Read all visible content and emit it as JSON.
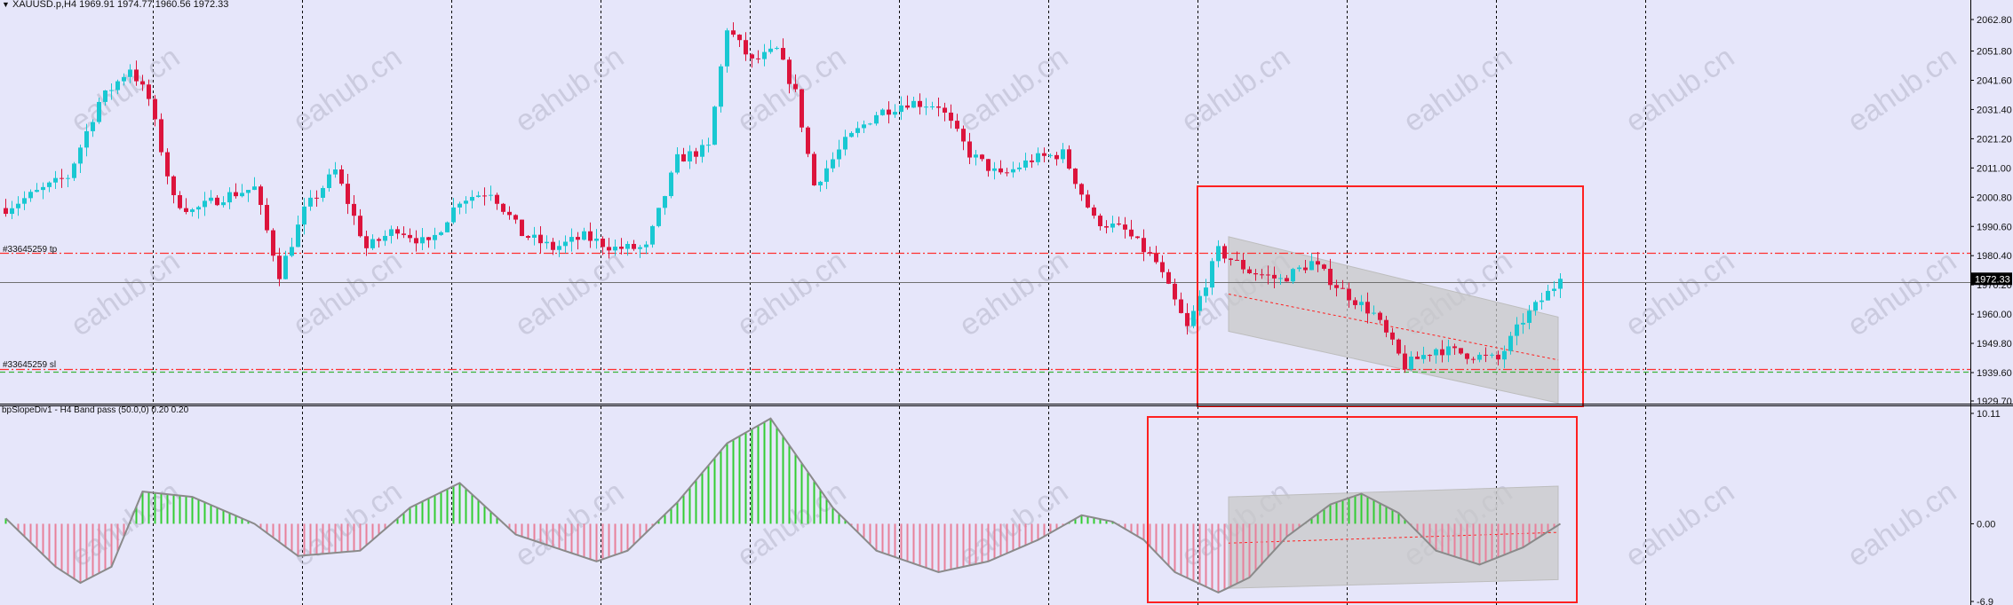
{
  "title": "XAUUSD.p,H4  1969.91 1974.77 1960.56 1972.33",
  "indicator_title": "bpSlopeDiv1 - H4 Band pass (50.0,0) 0.20 0.20",
  "watermark": "eahub.cn",
  "order_labels": {
    "tp": "#33645259 tp",
    "sl": "#33645259 sl"
  },
  "colors": {
    "background": "#e6e6fa",
    "bull": "#19c8d2",
    "bear": "#dc143c",
    "pos_hist": "#32cd32",
    "neg_hist": "#e8809a",
    "box": "#ff2020",
    "grid": "#000000",
    "channel": "#c8c8c8"
  },
  "chart_data": [
    {
      "type": "candlestick",
      "title": "XAUUSD.p,H4  1969.91 1974.77 1960.56 1972.33",
      "symbol": "XAUUSD.p",
      "timeframe": "H4",
      "last_price": "1972.33",
      "y_ticks": [
        "2062.80",
        "2051.80",
        "2041.60",
        "2031.40",
        "2021.20",
        "2011.00",
        "2000.80",
        "1990.60",
        "1980.40",
        "1970.20",
        "1960.00",
        "1949.80",
        "1939.60",
        "1929.70"
      ],
      "ylim": [
        1929.7,
        2062.8
      ],
      "grid": "vertical dashed",
      "horizontal_lines": [
        {
          "label": "#33645259 tp",
          "price": 1981.5,
          "style": "dash-dot",
          "color": "#ff3030"
        },
        {
          "label": "",
          "price": 1971.2,
          "style": "solid",
          "color": "#707070"
        },
        {
          "label": "#33645259 sl",
          "price": 1940.9,
          "style": "dash-dot",
          "color": "#ff3030"
        },
        {
          "label": "",
          "price": 1939.9,
          "style": "dash",
          "color": "#3cb43c"
        }
      ],
      "approximate_close_path": [
        {
          "bar": 0,
          "close": 1997
        },
        {
          "bar": 10,
          "close": 2008
        },
        {
          "bar": 15,
          "close": 2034
        },
        {
          "bar": 20,
          "close": 2046
        },
        {
          "bar": 23,
          "close": 2035
        },
        {
          "bar": 27,
          "close": 2000
        },
        {
          "bar": 30,
          "close": 1996
        },
        {
          "bar": 35,
          "close": 2001
        },
        {
          "bar": 40,
          "close": 2004
        },
        {
          "bar": 44,
          "close": 1974
        },
        {
          "bar": 48,
          "close": 1996
        },
        {
          "bar": 53,
          "close": 2010
        },
        {
          "bar": 58,
          "close": 1983
        },
        {
          "bar": 63,
          "close": 1990
        },
        {
          "bar": 68,
          "close": 1984
        },
        {
          "bar": 73,
          "close": 2000
        },
        {
          "bar": 78,
          "close": 2003
        },
        {
          "bar": 83,
          "close": 1988
        },
        {
          "bar": 88,
          "close": 1983
        },
        {
          "bar": 93,
          "close": 1987
        },
        {
          "bar": 98,
          "close": 1983
        },
        {
          "bar": 103,
          "close": 1983
        },
        {
          "bar": 108,
          "close": 2014
        },
        {
          "bar": 113,
          "close": 2018
        },
        {
          "bar": 116,
          "close": 2060
        },
        {
          "bar": 120,
          "close": 2048
        },
        {
          "bar": 124,
          "close": 2052
        },
        {
          "bar": 127,
          "close": 2037
        },
        {
          "bar": 130,
          "close": 2005
        },
        {
          "bar": 135,
          "close": 2020
        },
        {
          "bar": 140,
          "close": 2030
        },
        {
          "bar": 145,
          "close": 2034
        },
        {
          "bar": 150,
          "close": 2033
        },
        {
          "bar": 155,
          "close": 2016
        },
        {
          "bar": 160,
          "close": 2008
        },
        {
          "bar": 165,
          "close": 2014
        },
        {
          "bar": 170,
          "close": 2016
        },
        {
          "bar": 175,
          "close": 1993
        },
        {
          "bar": 180,
          "close": 1989
        },
        {
          "bar": 185,
          "close": 1978
        },
        {
          "bar": 190,
          "close": 1955
        },
        {
          "bar": 195,
          "close": 1982
        },
        {
          "bar": 200,
          "close": 1975
        },
        {
          "bar": 205,
          "close": 1972
        },
        {
          "bar": 210,
          "close": 1978
        },
        {
          "bar": 215,
          "close": 1968
        },
        {
          "bar": 220,
          "close": 1960
        },
        {
          "bar": 225,
          "close": 1942
        },
        {
          "bar": 230,
          "close": 1948
        },
        {
          "bar": 235,
          "close": 1946
        },
        {
          "bar": 240,
          "close": 1944
        },
        {
          "bar": 244,
          "close": 1958
        },
        {
          "bar": 250,
          "close": 1972
        }
      ],
      "channel": {
        "start_bar": 197,
        "end_bar": 250,
        "upper": [
          1987,
          1959
        ],
        "mid": [
          1967,
          1944
        ],
        "lower": [
          1954,
          1929
        ]
      },
      "highlight_bars": [
        192,
        254
      ]
    },
    {
      "type": "bar",
      "title": "bpSlopeDiv1 - H4 Band pass (50.0,0) 0.20 0.20",
      "y_ticks": [
        "10.11",
        "0.00",
        "-6.9"
      ],
      "ylim": [
        -6.9,
        10.11
      ],
      "approximate_curve": [
        {
          "bar": 0,
          "value": 0.5
        },
        {
          "bar": 8,
          "value": -4
        },
        {
          "bar": 12,
          "value": -5.5
        },
        {
          "bar": 17,
          "value": -4
        },
        {
          "bar": 22,
          "value": 3
        },
        {
          "bar": 30,
          "value": 2.5
        },
        {
          "bar": 40,
          "value": 0
        },
        {
          "bar": 47,
          "value": -3
        },
        {
          "bar": 57,
          "value": -2.5
        },
        {
          "bar": 65,
          "value": 1.5
        },
        {
          "bar": 73,
          "value": 3.8
        },
        {
          "bar": 82,
          "value": -1
        },
        {
          "bar": 95,
          "value": -3.5
        },
        {
          "bar": 100,
          "value": -2.5
        },
        {
          "bar": 108,
          "value": 2
        },
        {
          "bar": 116,
          "value": 7.5
        },
        {
          "bar": 123,
          "value": 9.8
        },
        {
          "bar": 133,
          "value": 1.5
        },
        {
          "bar": 140,
          "value": -2.5
        },
        {
          "bar": 150,
          "value": -4.5
        },
        {
          "bar": 158,
          "value": -3.5
        },
        {
          "bar": 166,
          "value": -1.5
        },
        {
          "bar": 173,
          "value": 0.8
        },
        {
          "bar": 178,
          "value": 0.2
        },
        {
          "bar": 183,
          "value": -1.5
        },
        {
          "bar": 188,
          "value": -4.5
        },
        {
          "bar": 195,
          "value": -6.4
        },
        {
          "bar": 200,
          "value": -5
        },
        {
          "bar": 206,
          "value": -1.2
        },
        {
          "bar": 213,
          "value": 1.8
        },
        {
          "bar": 218,
          "value": 2.8
        },
        {
          "bar": 224,
          "value": 1
        },
        {
          "bar": 230,
          "value": -2.5
        },
        {
          "bar": 237,
          "value": -3.8
        },
        {
          "bar": 244,
          "value": -2.2
        },
        {
          "bar": 250,
          "value": 0
        }
      ],
      "channel": {
        "start_bar": 197,
        "end_bar": 250,
        "upper": [
          2.5,
          3.5
        ],
        "mid": [
          -1.8,
          -0.8
        ],
        "lower": [
          -6.0,
          -5.2
        ]
      },
      "highlight_bars": [
        184,
        253
      ]
    }
  ]
}
